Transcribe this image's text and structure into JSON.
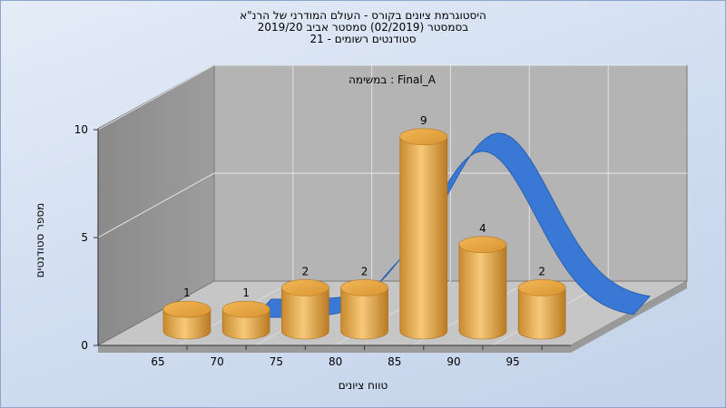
{
  "chart_data": {
    "type": "bar",
    "title": [
      "היסטוגרמת ציונים בקורס - העולם המודרני של הרנ\"א",
      "בסמסטר (02/2019) סמסטר אביב 2019/20",
      "סטודנטים רשומים - 21"
    ],
    "subtitle": "Final_A : במשימה",
    "xlabel": "טווח ציונים",
    "ylabel": "מספר סטודנטים",
    "x_ticks": [
      "65",
      "70",
      "75",
      "80",
      "85",
      "90",
      "95"
    ],
    "y_ticks": [
      "0",
      "5",
      "10"
    ],
    "ylim": [
      0,
      10
    ],
    "categories": [
      "65",
      "70",
      "75",
      "80",
      "85",
      "90",
      "95"
    ],
    "values": [
      1,
      1,
      2,
      2,
      9,
      4,
      2
    ],
    "labels": [
      "1",
      "1",
      "2",
      "2",
      "9",
      "4",
      "2"
    ],
    "curve": {
      "type": "normal-distribution",
      "color": "#3a78d6"
    },
    "bar_color": "#e3a54a"
  }
}
